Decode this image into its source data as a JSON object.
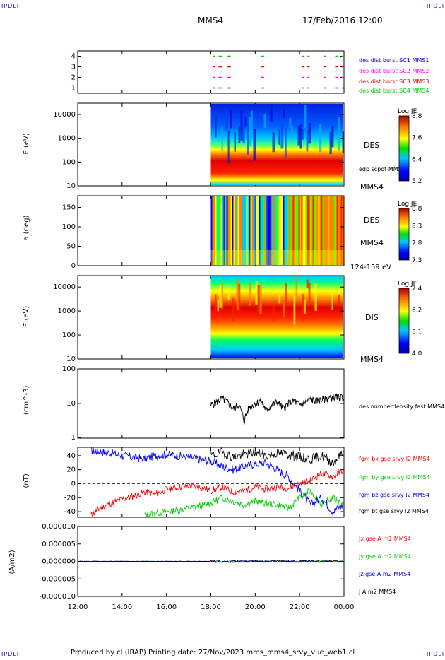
{
  "corner_tag": "IPDLI",
  "header": {
    "spacecraft": "MMS4",
    "datetime": "17/Feb/2016 12:00"
  },
  "footer": {
    "text": "Produced by cl (IRAP)   Printing date: 27/Nov/2023   mms_mms4_srvy_vue_web1.cl"
  },
  "colors": {
    "blue": "#0000ff",
    "magenta": "#ff00ff",
    "red": "#ff0000",
    "green": "#00d000",
    "black": "#000000"
  },
  "chart_data": [
    {
      "type": "scatter",
      "panel": "burst-availability",
      "ylim": [
        0.5,
        4.5
      ],
      "yticks": [
        "1",
        "2",
        "3",
        "4"
      ],
      "xlim": [
        12,
        24
      ],
      "series": [
        {
          "name": "des dist burst SC1 MMS1",
          "level": 1,
          "color": "#0000ff",
          "segments": [
            [
              18.1,
              18.2
            ],
            [
              18.35,
              18.5
            ],
            [
              18.75,
              18.9
            ],
            [
              20.25,
              20.4
            ],
            [
              22.1,
              22.2
            ],
            [
              22.35,
              22.45
            ],
            [
              23.1,
              23.2
            ],
            [
              23.6,
              23.75
            ],
            [
              23.9,
              24.0
            ]
          ]
        },
        {
          "name": "des dist burst SC2 MMS2",
          "level": 2,
          "color": "#ff00ff",
          "segments": [
            [
              18.1,
              18.2
            ],
            [
              18.35,
              18.5
            ],
            [
              18.75,
              18.9
            ],
            [
              20.25,
              20.4
            ],
            [
              22.1,
              22.2
            ],
            [
              22.35,
              22.45
            ],
            [
              23.1,
              23.2
            ],
            [
              23.6,
              23.75
            ],
            [
              23.9,
              24.0
            ]
          ]
        },
        {
          "name": "des dist burst SC3 MMS3",
          "level": 3,
          "color": "#ff0000",
          "segments": [
            [
              18.1,
              18.2
            ],
            [
              18.35,
              18.5
            ],
            [
              18.75,
              18.9
            ],
            [
              20.25,
              20.4
            ],
            [
              22.1,
              22.2
            ],
            [
              22.35,
              22.45
            ],
            [
              23.1,
              23.2
            ],
            [
              23.6,
              23.75
            ],
            [
              23.9,
              24.0
            ]
          ]
        },
        {
          "name": "des dist burst SC4 MMS4",
          "level": 4,
          "color": "#00d000",
          "segments": [
            [
              18.1,
              18.2
            ],
            [
              18.35,
              18.5
            ],
            [
              18.75,
              18.9
            ],
            [
              20.25,
              20.4
            ],
            [
              22.1,
              22.2
            ],
            [
              22.35,
              22.45
            ],
            [
              23.1,
              23.2
            ],
            [
              23.6,
              23.75
            ],
            [
              23.9,
              24.0
            ]
          ]
        }
      ]
    },
    {
      "type": "heatmap",
      "panel": "des-energy-spectrogram",
      "ylabel": "E (eV)",
      "ylim": [
        10,
        30000
      ],
      "yscale": "log",
      "yticks": [
        "10",
        "100",
        "1000",
        "10000"
      ],
      "label": "DES",
      "overlay": "edp scpot MMS4",
      "sc_label": "MMS4",
      "data_start": 18,
      "colorbar": {
        "title": "Log JE",
        "ticks": [
          "8.8",
          "7.6",
          "6.4",
          "5.2"
        ],
        "min": 5.2,
        "max": 8.8
      }
    },
    {
      "type": "heatmap",
      "panel": "des-pitch-angle",
      "ylabel": "a (deg)",
      "ylim": [
        0,
        180
      ],
      "yticks": [
        "0",
        "50",
        "100",
        "150"
      ],
      "label": "DES",
      "sc_label": "MMS4",
      "energy_range": "124-159 eV",
      "data_start": 18,
      "colorbar": {
        "title": "Log JE",
        "ticks": [
          "8.8",
          "8.3",
          "7.8",
          "7.3"
        ],
        "min": 7.3,
        "max": 8.8
      }
    },
    {
      "type": "heatmap",
      "panel": "dis-energy-spectrogram",
      "ylabel": "E (eV)",
      "ylim": [
        10,
        30000
      ],
      "yscale": "log",
      "yticks": [
        "10",
        "100",
        "1000",
        "10000"
      ],
      "label": "DIS",
      "sc_label": "MMS4",
      "data_start": 18,
      "colorbar": {
        "title": "Log JE",
        "ticks": [
          "7.4",
          "6.2",
          "5.1",
          "4.0"
        ],
        "min": 4.0,
        "max": 7.4
      }
    },
    {
      "type": "line",
      "panel": "density",
      "ylabel": "(cm^-3)",
      "ylim": [
        1,
        100
      ],
      "yscale": "log",
      "yticks": [
        "1",
        "10",
        "100"
      ],
      "series": [
        {
          "name": "des numberdensity fast MMS4",
          "color": "#000000",
          "x": [
            18.0,
            18.25,
            18.5,
            18.75,
            19.0,
            19.25,
            19.5,
            19.75,
            20.0,
            20.25,
            20.5,
            20.75,
            21.0,
            21.25,
            21.5,
            21.75,
            22.0,
            22.25,
            22.5,
            22.75,
            23.0,
            23.25,
            23.5,
            23.75,
            24.0
          ],
          "y": [
            9,
            11,
            14,
            11,
            7,
            9,
            3,
            8,
            10,
            12,
            6,
            9,
            11,
            7,
            10,
            12,
            9,
            11,
            13,
            12,
            13,
            14,
            15,
            16,
            15
          ]
        }
      ]
    },
    {
      "type": "line",
      "panel": "magnetic-field",
      "ylabel": "(nT)",
      "ylim": [
        -48,
        52
      ],
      "yticks": [
        "-40",
        "-20",
        "0",
        "20",
        "40"
      ],
      "series": [
        {
          "name": "fgm bx gse srvy l2 MMS4",
          "color": "#ff0000",
          "x": [
            12.6,
            13.0,
            13.5,
            14.0,
            14.5,
            15.0,
            15.5,
            16.0,
            16.5,
            17.0,
            17.5,
            18.0,
            18.5,
            19.0,
            19.5,
            20.0,
            20.5,
            21.0,
            21.5,
            22.0,
            22.5,
            23.0,
            23.5,
            24.0
          ],
          "y": [
            -45,
            -35,
            -28,
            -22,
            -18,
            -12,
            -15,
            -8,
            -5,
            -3,
            -5,
            -10,
            -5,
            -12,
            -10,
            -5,
            -8,
            -5,
            -6,
            0,
            5,
            15,
            10,
            20
          ]
        },
        {
          "name": "fgm by gse srvy l2 MMS4",
          "color": "#00d000",
          "x": [
            15.0,
            15.5,
            16.0,
            16.5,
            17.0,
            17.5,
            18.0,
            18.5,
            19.0,
            19.5,
            20.0,
            20.5,
            21.0,
            21.5,
            22.0,
            22.5,
            23.0,
            23.5,
            24.0
          ],
          "y": [
            -45,
            -42,
            -40,
            -38,
            -35,
            -32,
            -28,
            -20,
            -25,
            -30,
            -25,
            -28,
            -30,
            -35,
            -20,
            -10,
            -30,
            -20,
            -30
          ]
        },
        {
          "name": "fgm bz gse srvy l2 MMS4",
          "color": "#0000ff",
          "x": [
            12.6,
            13.0,
            13.5,
            14.0,
            14.5,
            15.0,
            15.5,
            16.0,
            16.5,
            17.0,
            17.5,
            18.0,
            18.5,
            19.0,
            19.5,
            20.0,
            20.5,
            21.0,
            21.5,
            22.0,
            22.5,
            23.0,
            23.5,
            24.0
          ],
          "y": [
            48,
            46,
            44,
            40,
            38,
            35,
            40,
            42,
            40,
            38,
            35,
            32,
            25,
            20,
            25,
            28,
            30,
            20,
            10,
            -10,
            -30,
            -20,
            -40,
            -30
          ]
        },
        {
          "name": "fgm bt gse srvy l2 MMS4",
          "color": "#000000",
          "x": [
            18.0,
            18.5,
            19.0,
            19.5,
            20.0,
            20.5,
            21.0,
            21.5,
            22.0,
            22.5,
            23.0,
            23.5,
            24.0
          ],
          "y": [
            40,
            45,
            38,
            42,
            45,
            40,
            44,
            42,
            38,
            35,
            40,
            30,
            45
          ]
        }
      ]
    },
    {
      "type": "line",
      "panel": "current-density",
      "ylabel": "(A/m2)",
      "ylim": [
        -1e-05,
        1e-05
      ],
      "yticks": [
        "-0.000010",
        "-0.000005",
        "0.000000",
        "0.000005",
        "0.000010"
      ],
      "series": [
        {
          "name": "Jx gse A m2 MMS4",
          "color": "#ff0000"
        },
        {
          "name": "Jy gse A m2 MMS4",
          "color": "#00d000"
        },
        {
          "name": "Jz gse A m2 MMS4",
          "color": "#0000ff"
        },
        {
          "name": "J A m2 MMS4",
          "color": "#000000"
        }
      ],
      "xlim": [
        12,
        24
      ],
      "xtick_labels": [
        "12:00",
        "14:00",
        "16:00",
        "18:00",
        "20:00",
        "22:00",
        "00:00"
      ]
    }
  ]
}
